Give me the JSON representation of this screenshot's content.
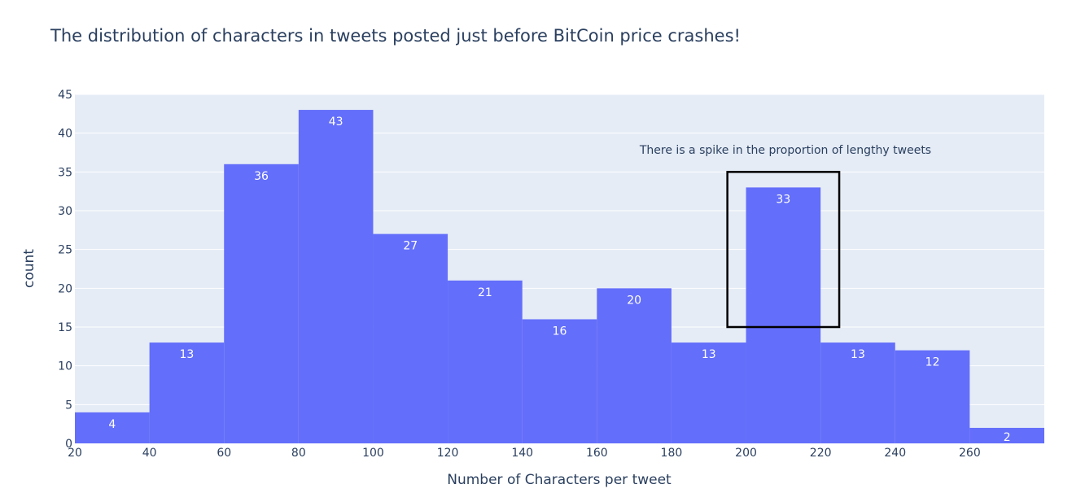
{
  "chart_data": {
    "type": "bar",
    "title": "The distribution of characters in tweets posted just before BitCoin price crashes!",
    "xlabel": "Number of Characters per tweet",
    "ylabel": "count",
    "bin_width": 20,
    "bins": [
      {
        "start": 20,
        "end": 40,
        "value": 4
      },
      {
        "start": 40,
        "end": 60,
        "value": 13
      },
      {
        "start": 60,
        "end": 80,
        "value": 36
      },
      {
        "start": 80,
        "end": 100,
        "value": 43
      },
      {
        "start": 100,
        "end": 120,
        "value": 27
      },
      {
        "start": 120,
        "end": 140,
        "value": 21
      },
      {
        "start": 140,
        "end": 160,
        "value": 16
      },
      {
        "start": 160,
        "end": 180,
        "value": 20
      },
      {
        "start": 180,
        "end": 200,
        "value": 13
      },
      {
        "start": 200,
        "end": 220,
        "value": 33
      },
      {
        "start": 220,
        "end": 240,
        "value": 13
      },
      {
        "start": 240,
        "end": 260,
        "value": 12
      },
      {
        "start": 260,
        "end": 280,
        "value": 2
      }
    ],
    "xlim": [
      20,
      280
    ],
    "ylim": [
      0,
      45
    ],
    "xticks": [
      20,
      40,
      60,
      80,
      100,
      120,
      140,
      160,
      180,
      200,
      220,
      240,
      260
    ],
    "yticks": [
      0,
      5,
      10,
      15,
      20,
      25,
      30,
      35,
      40,
      45
    ],
    "grid": true,
    "annotation": {
      "text": "There is a spike in the proportion of lengthy tweets",
      "box_x": [
        195,
        225
      ],
      "box_y": [
        15,
        35
      ]
    },
    "colors": {
      "bar": "#636efa",
      "plot_background": "#e5ecf6",
      "gridline": "#ffffff",
      "text": "#2a3f5f",
      "box": "#000000"
    }
  }
}
